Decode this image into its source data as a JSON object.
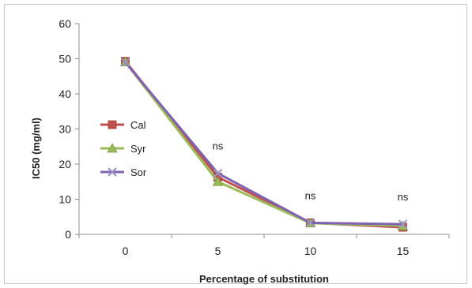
{
  "chart_data": {
    "type": "line",
    "title": "",
    "xlabel": "Percentage of substitution",
    "ylabel": "IC50 (mg/ml)",
    "x": [
      0,
      5,
      10,
      15
    ],
    "x_tick_labels": [
      "0",
      "5",
      "10",
      "15"
    ],
    "ylim": [
      0,
      60
    ],
    "y_ticks": [
      0,
      10,
      20,
      30,
      40,
      50,
      60
    ],
    "y_tick_labels": [
      "0",
      "10",
      "20",
      "30",
      "40",
      "50",
      "60"
    ],
    "grid": false,
    "legend_position": "left-middle",
    "series": [
      {
        "name": "Cal",
        "values": [
          49.3,
          16.3,
          3.3,
          2.0
        ],
        "color": "#c0504d",
        "marker": "square"
      },
      {
        "name": "Syr",
        "values": [
          49.1,
          15.0,
          3.2,
          2.4
        ],
        "color": "#9bbb59",
        "marker": "triangle"
      },
      {
        "name": "Sor",
        "values": [
          49.0,
          17.4,
          3.3,
          2.9
        ],
        "color": "#7f63b0",
        "marker": "x"
      }
    ],
    "annotations": [
      {
        "x": 5,
        "text": "ns"
      },
      {
        "x": 10,
        "text": "ns"
      },
      {
        "x": 15,
        "text": "ns"
      }
    ]
  }
}
